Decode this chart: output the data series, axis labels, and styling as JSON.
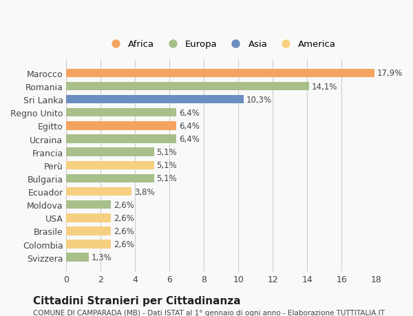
{
  "categories": [
    "Marocco",
    "Romania",
    "Sri Lanka",
    "Regno Unito",
    "Egitto",
    "Ucraina",
    "Francia",
    "Perù",
    "Bulgaria",
    "Ecuador",
    "Moldova",
    "USA",
    "Brasile",
    "Colombia",
    "Svizzera"
  ],
  "values": [
    17.9,
    14.1,
    10.3,
    6.4,
    6.4,
    6.4,
    5.1,
    5.1,
    5.1,
    3.8,
    2.6,
    2.6,
    2.6,
    2.6,
    1.3
  ],
  "labels": [
    "17,9%",
    "14,1%",
    "10,3%",
    "6,4%",
    "6,4%",
    "6,4%",
    "5,1%",
    "5,1%",
    "5,1%",
    "3,8%",
    "2,6%",
    "2,6%",
    "2,6%",
    "2,6%",
    "1,3%"
  ],
  "colors": [
    "#F4A460",
    "#A8BF8A",
    "#6B8DBF",
    "#A8BF8A",
    "#F4A460",
    "#A8BF8A",
    "#A8BF8A",
    "#F5D080",
    "#A8BF8A",
    "#F5D080",
    "#A8BF8A",
    "#F5D080",
    "#F5D080",
    "#F5D080",
    "#A8BF8A"
  ],
  "legend_labels": [
    "Africa",
    "Europa",
    "Asia",
    "America"
  ],
  "legend_colors": [
    "#F4A460",
    "#A8BF8A",
    "#6B8DBF",
    "#F5D080"
  ],
  "xlim": [
    0,
    18
  ],
  "xticks": [
    0,
    2,
    4,
    6,
    8,
    10,
    12,
    14,
    16,
    18
  ],
  "title": "Cittadini Stranieri per Cittadinanza",
  "subtitle": "COMUNE DI CAMPARADA (MB) - Dati ISTAT al 1° gennaio di ogni anno - Elaborazione TUTTITALIA.IT",
  "bg_color": "#f9f9f9",
  "grid_color": "#cccccc"
}
